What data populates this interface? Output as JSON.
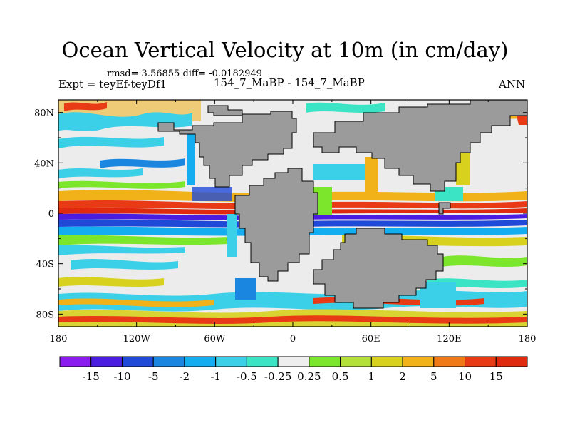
{
  "plot": {
    "title": "Ocean Vertical Velocity at 10m (in cm/day)",
    "stats_line": "rmsd= 3.56855 diff= -0.0182949",
    "left_subtitle": "Expt = teyEf-teyDf1",
    "center_subtitle": "154_7_MaBP - 154_7_MaBP",
    "right_subtitle": "ANN"
  },
  "map": {
    "lat_ticks": [
      "80N",
      "40N",
      "0",
      "40S",
      "80S"
    ],
    "lat_values": [
      80,
      40,
      0,
      -40,
      -80
    ],
    "lon_ticks": [
      "180",
      "120W",
      "60W",
      "0",
      "60E",
      "120E",
      "180"
    ],
    "lon_values": [
      -180,
      -120,
      -60,
      0,
      60,
      120,
      180
    ],
    "lat_range": [
      -90,
      90
    ],
    "lon_range": [
      -180,
      180
    ],
    "land_color": "#9b9b9b"
  },
  "colorbar": {
    "labels": [
      "-15",
      "-10",
      "-5",
      "-2",
      "-1",
      "-0.5",
      "-0.25",
      "0.25",
      "0.5",
      "1",
      "2",
      "5",
      "10",
      "15"
    ],
    "colors": [
      "#8a1cf0",
      "#4a1de0",
      "#1f4ad8",
      "#1a86e0",
      "#14aef0",
      "#3ccfe8",
      "#3ae4c4",
      "#eeeeee",
      "#7ce62c",
      "#b4e03a",
      "#d8d21e",
      "#f0b218",
      "#f07a18",
      "#e83a14",
      "#e02a10"
    ]
  }
}
